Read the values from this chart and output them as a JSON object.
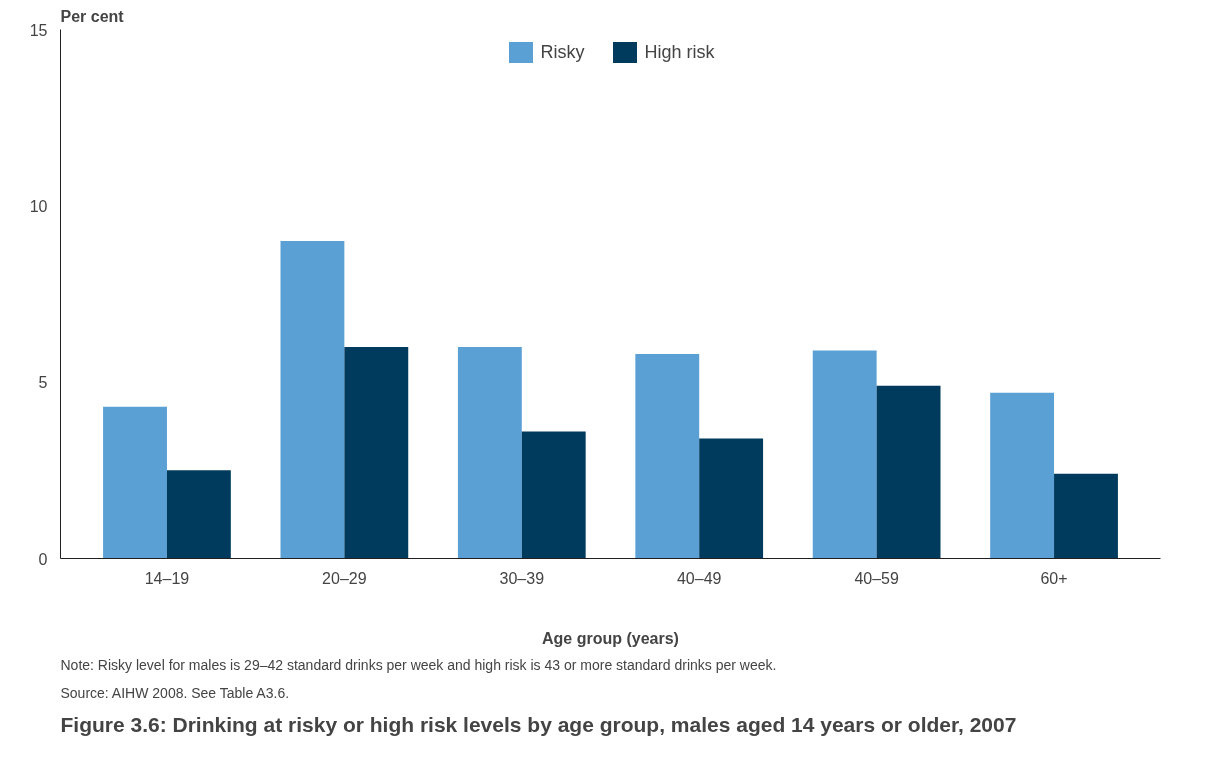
{
  "chart_data": {
    "type": "bar",
    "title": "Figure 3.6: Drinking at risky or high risk levels by age group, males aged 14 years or older, 2007",
    "categories": [
      "14–19",
      "20–29",
      "30–39",
      "40–49",
      "40–59",
      "60+"
    ],
    "xlabel": "Age group (years)",
    "ylabel": "Per cent",
    "series": [
      {
        "name": "Risky",
        "color": "#5aa0d5",
        "values": [
          4.3,
          9.0,
          6.0,
          5.8,
          5.9,
          4.7
        ]
      },
      {
        "name": "High risk",
        "color": "#003a5c",
        "values": [
          2.5,
          6.0,
          3.6,
          3.4,
          4.9,
          2.4
        ]
      }
    ],
    "ylim": [
      0,
      15
    ],
    "yticks": [
      0,
      5,
      10,
      15
    ],
    "grid": false,
    "legend": "top",
    "annotations": [
      "Note: Risky level for males is 29–42 standard drinks per week and high risk is 43 or more standard drinks per week.",
      "Source: AIHW 2008. See Table A3.6."
    ]
  }
}
